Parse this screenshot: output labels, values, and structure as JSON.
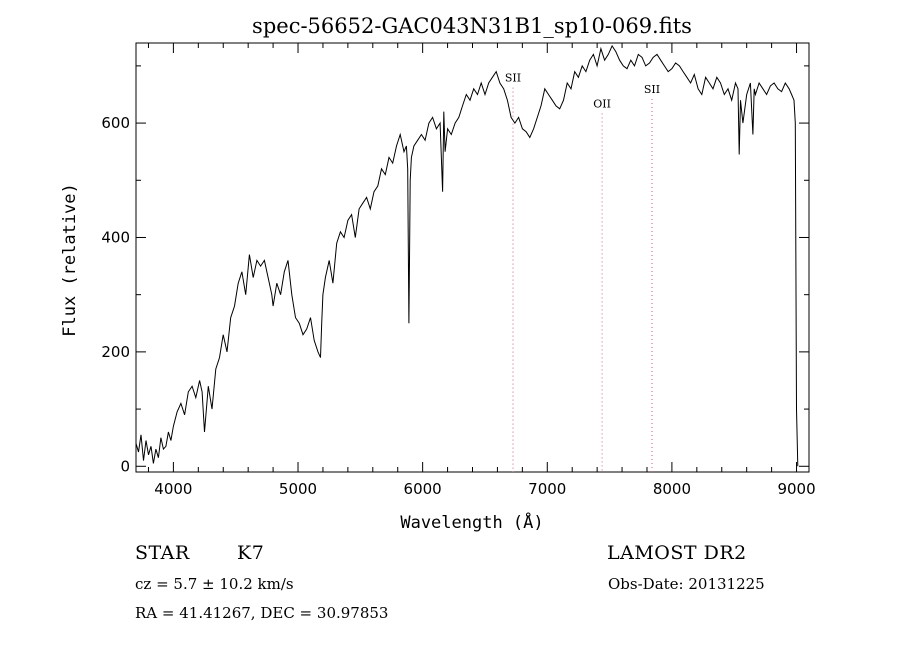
{
  "chart_data": {
    "type": "line",
    "title": "spec-56652-GAC043N31B1_sp10-069.fits",
    "xlabel": "Wavelength (Å)",
    "ylabel": "Flux (relative)",
    "xlim": [
      3700,
      9100
    ],
    "ylim": [
      -10,
      740
    ],
    "x_ticks": [
      4000,
      5000,
      6000,
      7000,
      8000,
      9000
    ],
    "y_ticks": [
      0,
      200,
      400,
      600
    ],
    "x_tick_labels": [
      "4000",
      "5000",
      "6000",
      "7000",
      "8000",
      "9000"
    ],
    "y_tick_labels": [
      "0",
      "200",
      "400",
      "600"
    ],
    "grid": false,
    "line_color": "#000000",
    "marker_color": "#cc6677",
    "series": [
      {
        "x": [
          3700,
          3720,
          3740,
          3760,
          3780,
          3800,
          3820,
          3840,
          3860,
          3880,
          3900,
          3920,
          3940,
          3960,
          3980,
          4000,
          4030,
          4060,
          4090,
          4120,
          4150,
          4180,
          4210,
          4230,
          4250,
          4280,
          4310,
          4340,
          4370,
          4400,
          4430,
          4460,
          4490,
          4520,
          4550,
          4580,
          4610,
          4640,
          4670,
          4700,
          4730,
          4760,
          4790,
          4800,
          4830,
          4860,
          4890,
          4920,
          4950,
          4980,
          5010,
          5040,
          5070,
          5100,
          5130,
          5160,
          5180,
          5190,
          5200,
          5220,
          5250,
          5280,
          5310,
          5340,
          5370,
          5400,
          5430,
          5460,
          5490,
          5520,
          5550,
          5580,
          5610,
          5640,
          5670,
          5700,
          5730,
          5760,
          5790,
          5820,
          5850,
          5870,
          5880,
          5890,
          5895,
          5900,
          5910,
          5930,
          5960,
          5990,
          6020,
          6050,
          6080,
          6110,
          6140,
          6160,
          6170,
          6180,
          6200,
          6230,
          6260,
          6290,
          6320,
          6350,
          6380,
          6410,
          6440,
          6470,
          6500,
          6530,
          6560,
          6590,
          6620,
          6650,
          6680,
          6710,
          6740,
          6770,
          6800,
          6830,
          6860,
          6890,
          6920,
          6950,
          6980,
          7010,
          7040,
          7070,
          7100,
          7130,
          7160,
          7190,
          7220,
          7250,
          7280,
          7310,
          7340,
          7370,
          7400,
          7430,
          7460,
          7490,
          7520,
          7550,
          7580,
          7610,
          7640,
          7670,
          7700,
          7730,
          7760,
          7790,
          7820,
          7850,
          7880,
          7910,
          7940,
          7970,
          8000,
          8030,
          8060,
          8090,
          8120,
          8150,
          8180,
          8210,
          8240,
          8270,
          8300,
          8330,
          8360,
          8390,
          8420,
          8450,
          8480,
          8510,
          8530,
          8540,
          8550,
          8570,
          8600,
          8630,
          8650,
          8660,
          8670,
          8700,
          8730,
          8760,
          8790,
          8820,
          8850,
          8880,
          8910,
          8940,
          8960,
          8980,
          8990,
          9000,
          9010
        ],
        "y": [
          40,
          25,
          55,
          10,
          45,
          20,
          35,
          5,
          30,
          15,
          50,
          30,
          35,
          60,
          45,
          70,
          95,
          110,
          90,
          130,
          140,
          120,
          150,
          130,
          60,
          140,
          100,
          170,
          190,
          230,
          200,
          260,
          280,
          320,
          340,
          300,
          370,
          330,
          360,
          350,
          360,
          330,
          300,
          280,
          320,
          300,
          340,
          360,
          300,
          260,
          250,
          230,
          240,
          260,
          220,
          200,
          190,
          250,
          300,
          330,
          360,
          320,
          390,
          410,
          400,
          430,
          440,
          400,
          450,
          460,
          470,
          450,
          480,
          490,
          520,
          510,
          540,
          530,
          560,
          580,
          550,
          560,
          520,
          250,
          380,
          500,
          540,
          560,
          570,
          580,
          570,
          600,
          610,
          590,
          600,
          480,
          620,
          550,
          590,
          580,
          600,
          610,
          630,
          650,
          640,
          660,
          650,
          670,
          650,
          670,
          680,
          690,
          670,
          660,
          640,
          610,
          600,
          610,
          590,
          585,
          575,
          590,
          610,
          630,
          660,
          650,
          640,
          630,
          625,
          640,
          670,
          660,
          690,
          680,
          700,
          690,
          710,
          720,
          700,
          730,
          710,
          720,
          735,
          725,
          710,
          700,
          695,
          710,
          700,
          720,
          715,
          700,
          705,
          715,
          720,
          710,
          700,
          690,
          695,
          705,
          700,
          690,
          680,
          670,
          685,
          660,
          650,
          680,
          670,
          660,
          680,
          670,
          650,
          660,
          640,
          670,
          660,
          545,
          640,
          600,
          650,
          670,
          580,
          660,
          650,
          670,
          660,
          650,
          665,
          670,
          660,
          655,
          670,
          660,
          650,
          640,
          600,
          100,
          0
        ]
      }
    ],
    "line_markers": [
      {
        "label": "SII",
        "x": 6725,
        "label_y": 690
      },
      {
        "label": "OII",
        "x": 7440,
        "label_y": 645
      },
      {
        "label": "SII",
        "x": 7840,
        "label_y": 670
      }
    ]
  },
  "info": {
    "object_type": "STAR",
    "subclass": "K7",
    "survey": "LAMOST DR2",
    "cz": "cz = 5.7 ± 10.2 km/s",
    "obs_date": "Obs-Date: 20131225",
    "coords": "RA =  41.41267, DEC =  30.97853"
  }
}
